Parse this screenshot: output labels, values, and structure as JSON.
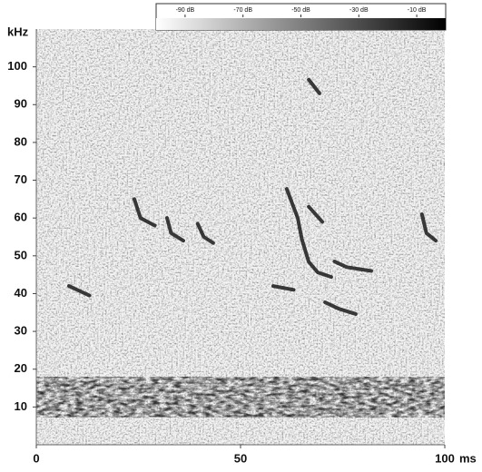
{
  "chart_data": {
    "type": "spectrogram",
    "x_label": "ms",
    "y_label": "kHz",
    "xlim": [
      0,
      100
    ],
    "xticks": [
      0,
      50,
      100
    ],
    "ylim": [
      0,
      110
    ],
    "yticks": [
      10,
      20,
      30,
      40,
      50,
      60,
      70,
      80,
      90,
      100
    ],
    "zlim": [
      -100,
      0
    ],
    "zticks": [
      {
        "value": -90,
        "label": "-90 dB"
      },
      {
        "value": -70,
        "label": "-70 dB"
      },
      {
        "value": -50,
        "label": "-50 dB"
      },
      {
        "value": -30,
        "label": "-30 dB"
      },
      {
        "value": -10,
        "label": "-10 dB"
      }
    ],
    "color": "#1a1a1a",
    "calls": [
      {
        "x": [
          8,
          10,
          13
        ],
        "y": [
          42,
          41,
          39.5
        ]
      },
      {
        "x": [
          24,
          25.5,
          29
        ],
        "y": [
          65,
          60,
          58
        ]
      },
      {
        "x": [
          32,
          33,
          36
        ],
        "y": [
          60,
          56,
          54
        ]
      },
      {
        "x": [
          39.5,
          41,
          43.3
        ],
        "y": [
          58.5,
          55,
          53.4
        ]
      },
      {
        "x": [
          58,
          63
        ],
        "y": [
          42,
          41
        ]
      },
      {
        "x": [
          61.3,
          64,
          65,
          66.7,
          68.9,
          72.2
        ],
        "y": [
          67.7,
          60,
          54.4,
          48.4,
          45.6,
          44.4
        ]
      },
      {
        "x": [
          66.7,
          70
        ],
        "y": [
          63,
          59
        ]
      },
      {
        "x": [
          73,
          76,
          82
        ],
        "y": [
          48.5,
          47,
          46
        ]
      },
      {
        "x": [
          70.7,
          74,
          78.2
        ],
        "y": [
          37.7,
          36,
          34.6
        ]
      },
      {
        "x": [
          94.4,
          95.5,
          97.8
        ],
        "y": [
          61,
          56,
          54
        ]
      },
      {
        "x": [
          66.7,
          69.3
        ],
        "y": [
          96.6,
          93
        ]
      }
    ]
  }
}
